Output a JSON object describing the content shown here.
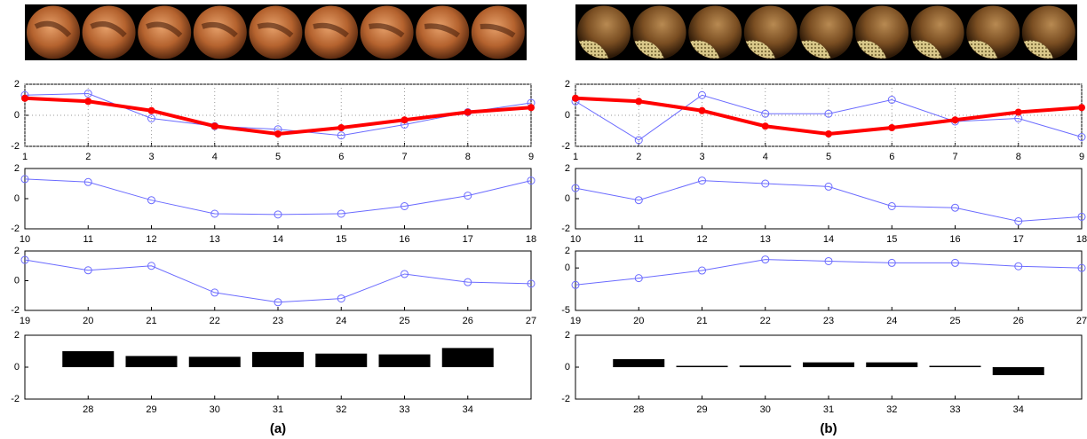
{
  "captions": [
    "(a)",
    "(b)"
  ],
  "chart_data": [
    {
      "type": "line",
      "x": [
        1,
        2,
        3,
        4,
        5,
        6,
        7,
        8,
        9
      ],
      "xlim": [
        1,
        9
      ],
      "xticks": [
        1,
        2,
        3,
        4,
        5,
        6,
        7,
        8,
        9
      ],
      "ylim": [
        -2,
        2
      ],
      "yticks": [
        -2,
        0,
        2
      ],
      "grid": true,
      "series": [
        {
          "color": "#6b6bff",
          "values": [
            1.3,
            1.4,
            -0.2,
            -0.7,
            -0.9,
            -1.3,
            -0.6,
            0.2,
            0.8
          ]
        },
        {
          "color": "#ff0000",
          "values": [
            1.1,
            0.9,
            0.3,
            -0.7,
            -1.2,
            -0.8,
            -0.3,
            0.2,
            0.5
          ]
        }
      ]
    },
    {
      "type": "line",
      "x": [
        10,
        11,
        12,
        13,
        14,
        15,
        16,
        17,
        18
      ],
      "xlim": [
        10,
        18
      ],
      "xticks": [
        10,
        11,
        12,
        13,
        14,
        15,
        16,
        17,
        18
      ],
      "ylim": [
        -2,
        2
      ],
      "yticks": [
        -2,
        0,
        2
      ],
      "grid": false,
      "series": [
        {
          "color": "#6b6bff",
          "values": [
            1.3,
            1.1,
            -0.1,
            -1.0,
            -1.05,
            -1.0,
            -0.5,
            0.2,
            1.2
          ]
        }
      ]
    },
    {
      "type": "line",
      "x": [
        19,
        20,
        21,
        22,
        23,
        24,
        25,
        26,
        27
      ],
      "xlim": [
        19,
        27
      ],
      "xticks": [
        19,
        20,
        21,
        22,
        23,
        24,
        25,
        26,
        27
      ],
      "ylim": [
        -2,
        2
      ],
      "yticks": [
        -2,
        0,
        2
      ],
      "grid": false,
      "series": [
        {
          "color": "#6b6bff",
          "values": [
            1.4,
            0.7,
            1.0,
            -0.8,
            -1.45,
            -1.2,
            0.45,
            -0.1,
            -0.2
          ]
        }
      ]
    },
    {
      "type": "bar",
      "x": [
        28,
        29,
        30,
        31,
        32,
        33,
        34
      ],
      "xlim": [
        27,
        35
      ],
      "xticks": [
        28,
        29,
        30,
        31,
        32,
        33,
        34
      ],
      "ylim": [
        -2,
        2
      ],
      "yticks": [
        -2,
        0,
        2
      ],
      "grid": false,
      "color": "#000000",
      "values": [
        1.0,
        0.7,
        0.65,
        0.95,
        0.85,
        0.8,
        1.2
      ]
    },
    {
      "type": "line",
      "x": [
        1,
        2,
        3,
        4,
        5,
        6,
        7,
        8,
        9
      ],
      "xlim": [
        1,
        9
      ],
      "xticks": [
        1,
        2,
        3,
        4,
        5,
        6,
        7,
        8,
        9
      ],
      "ylim": [
        -2,
        2
      ],
      "yticks": [
        -2,
        0,
        2
      ],
      "grid": true,
      "series": [
        {
          "color": "#6b6bff",
          "values": [
            0.9,
            -1.6,
            1.3,
            0.1,
            0.1,
            1.0,
            -0.4,
            -0.2,
            -1.4
          ]
        },
        {
          "color": "#ff0000",
          "values": [
            1.1,
            0.9,
            0.3,
            -0.7,
            -1.2,
            -0.8,
            -0.3,
            0.2,
            0.5
          ]
        }
      ]
    },
    {
      "type": "line",
      "x": [
        10,
        11,
        12,
        13,
        14,
        15,
        16,
        17,
        18
      ],
      "xlim": [
        10,
        18
      ],
      "xticks": [
        10,
        11,
        12,
        13,
        14,
        15,
        16,
        17,
        18
      ],
      "ylim": [
        -2,
        2
      ],
      "yticks": [
        -2,
        0,
        2
      ],
      "grid": false,
      "series": [
        {
          "color": "#6b6bff",
          "values": [
            0.7,
            -0.1,
            1.2,
            1.0,
            0.8,
            -0.5,
            -0.6,
            -1.5,
            -1.2
          ]
        }
      ]
    },
    {
      "type": "line",
      "x": [
        19,
        20,
        21,
        22,
        23,
        24,
        25,
        26,
        27
      ],
      "xlim": [
        19,
        27
      ],
      "xticks": [
        19,
        20,
        21,
        22,
        23,
        24,
        25,
        26,
        27
      ],
      "ylim": [
        -5,
        2
      ],
      "yticks": [
        -5,
        0,
        2
      ],
      "grid": false,
      "series": [
        {
          "color": "#6b6bff",
          "values": [
            -2.0,
            -1.2,
            -0.3,
            1.0,
            0.8,
            0.6,
            0.6,
            0.2,
            0.0
          ]
        }
      ]
    },
    {
      "type": "bar",
      "x": [
        28,
        29,
        30,
        31,
        32,
        33,
        34
      ],
      "xlim": [
        27,
        35
      ],
      "xticks": [
        28,
        29,
        30,
        31,
        32,
        33,
        34
      ],
      "ylim": [
        -2,
        2
      ],
      "yticks": [
        -2,
        0,
        2
      ],
      "grid": false,
      "color": "#000000",
      "values": [
        0.5,
        0,
        0.1,
        0.3,
        0.3,
        0,
        -0.5
      ]
    }
  ]
}
